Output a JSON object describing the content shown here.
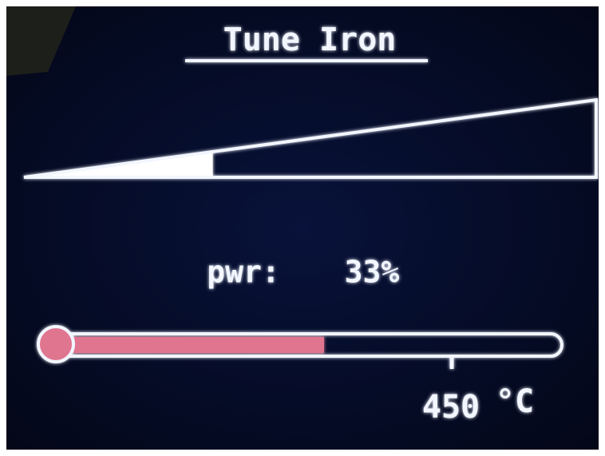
{
  "header": {
    "title": "Tune Iron"
  },
  "power": {
    "label": "pwr:",
    "value": 33,
    "value_label": "33%"
  },
  "temperature": {
    "value": "450",
    "unit": "°C"
  }
}
